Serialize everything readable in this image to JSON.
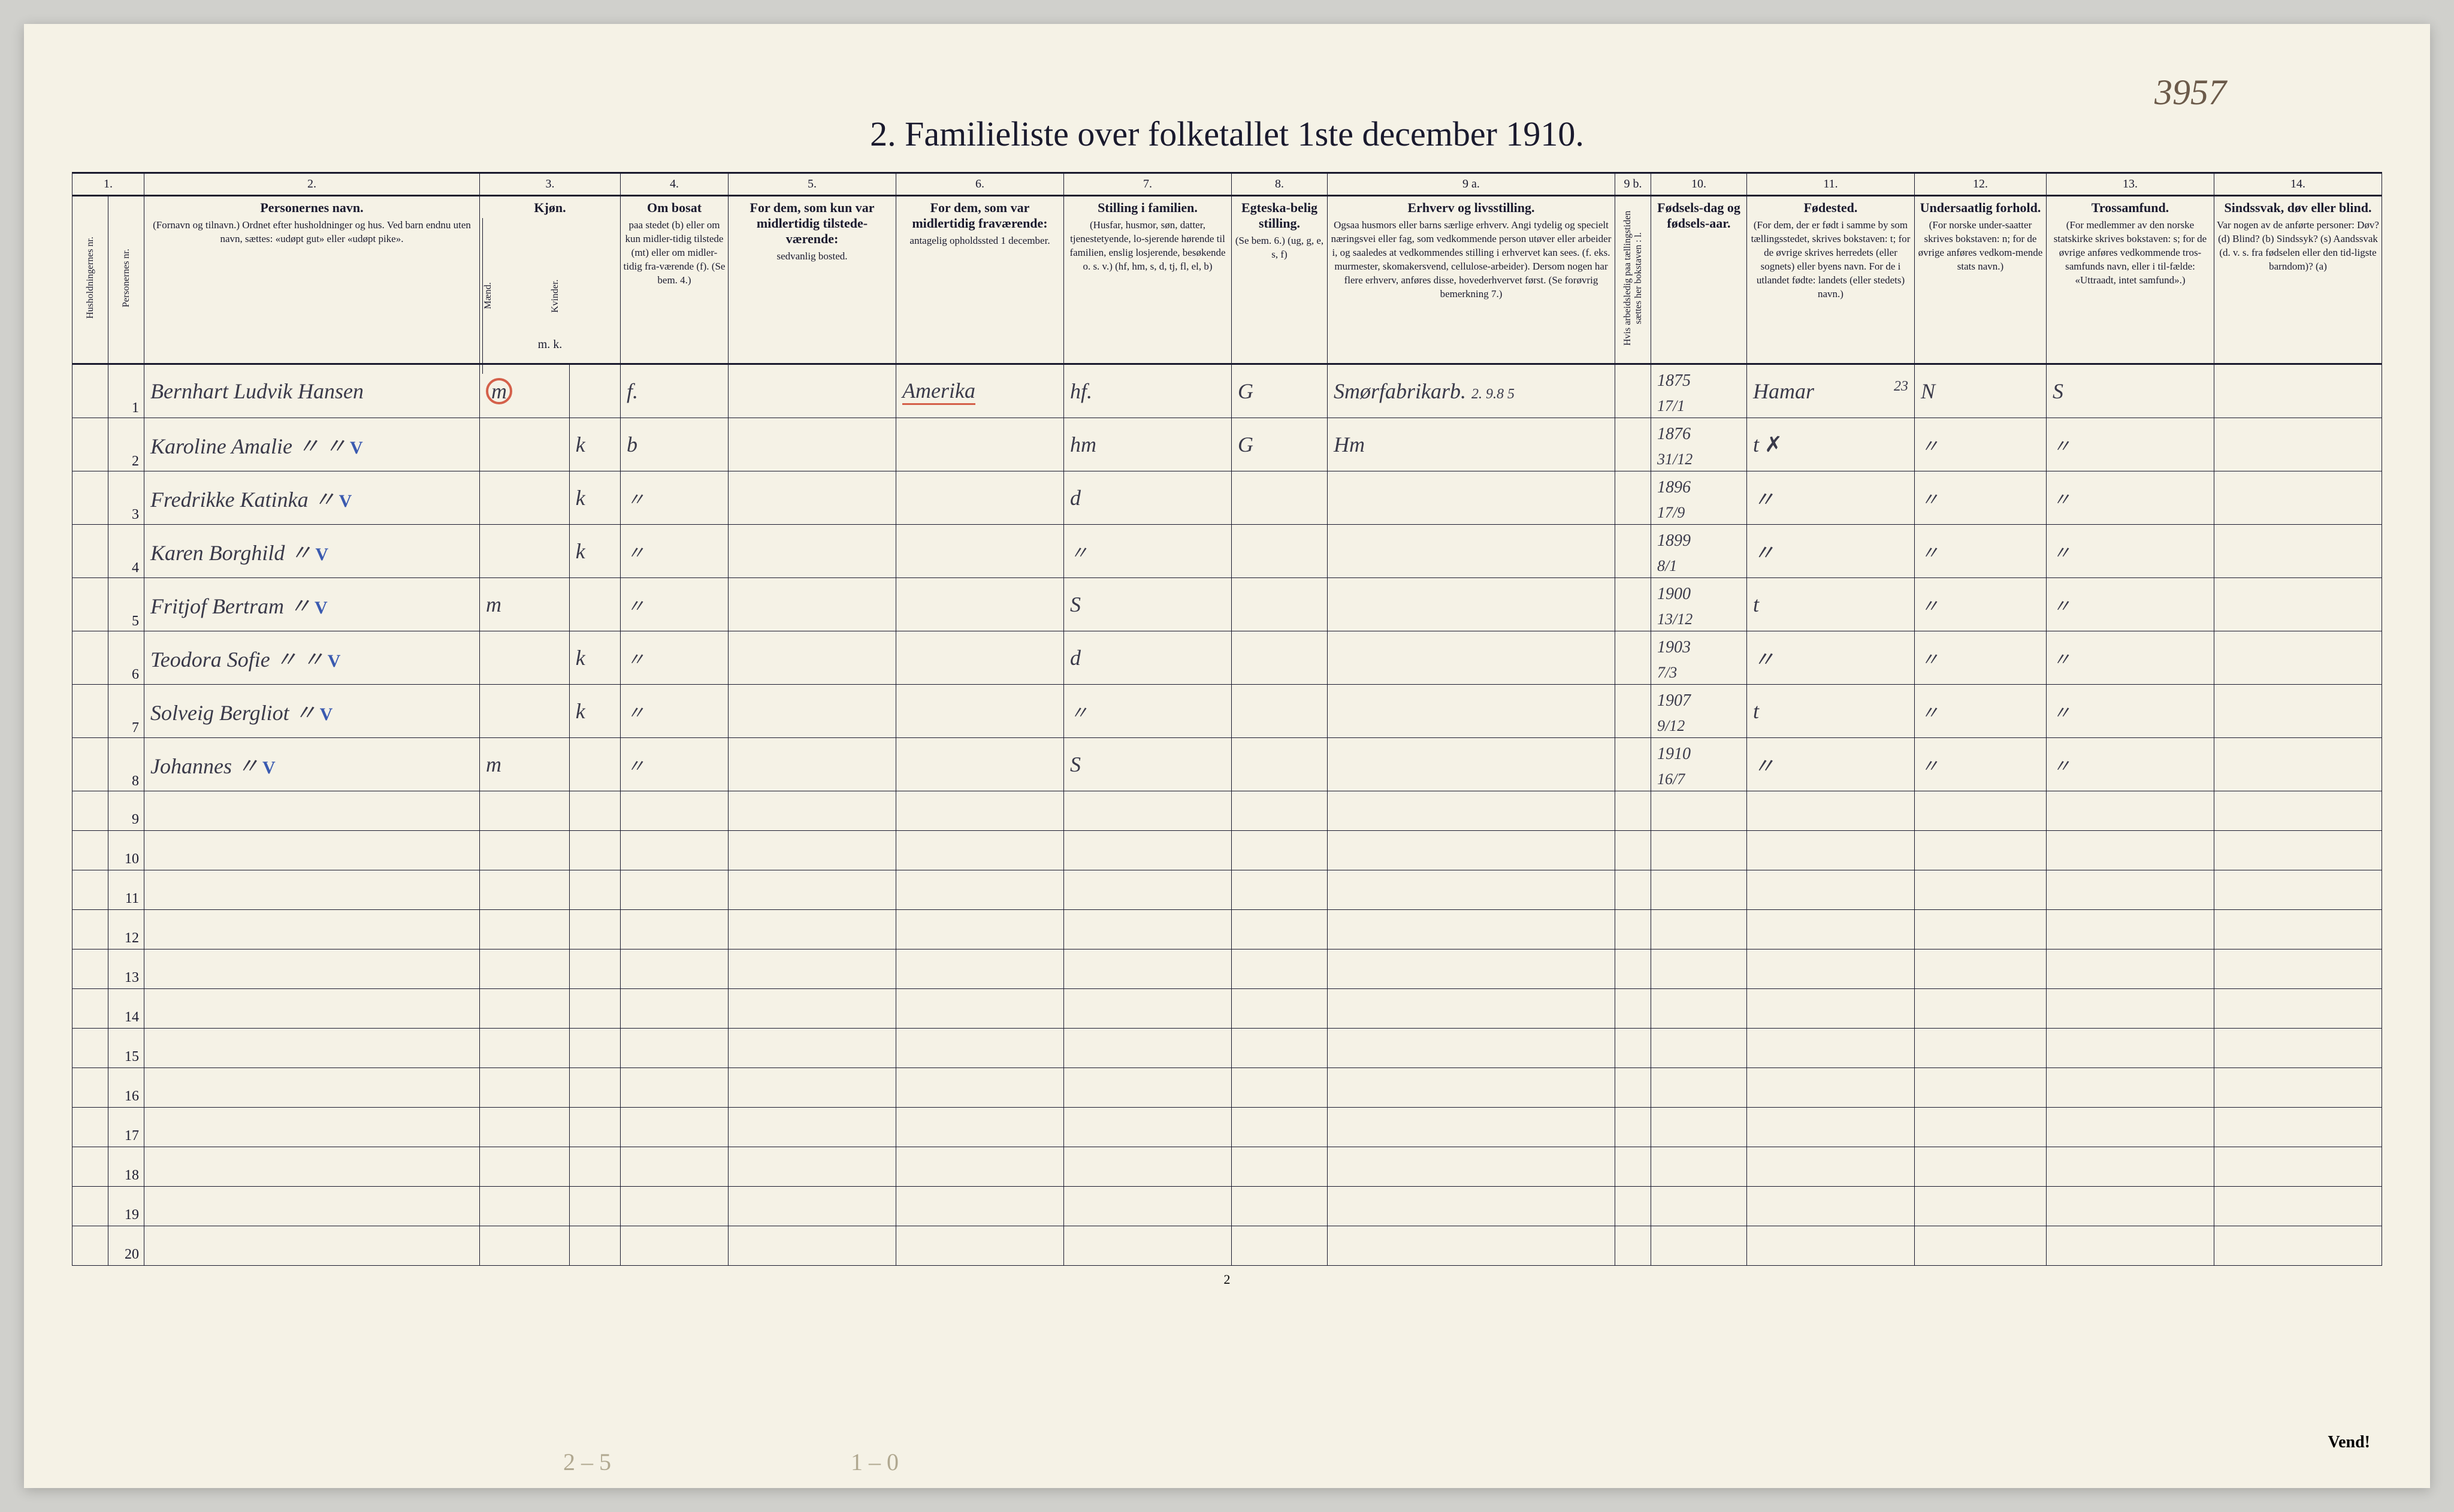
{
  "handwritten_topright": "3957",
  "title": "2.  Familieliste over folketallet 1ste december 1910.",
  "page_number": "2",
  "vend_text": "Vend!",
  "pencil_notes": {
    "left": "2 – 5",
    "right": "1 – 0"
  },
  "column_numbers": [
    "1.",
    "",
    "2.",
    "3.",
    "4.",
    "5.",
    "6.",
    "7.",
    "8.",
    "9 a.",
    "9 b.",
    "10.",
    "11.",
    "12.",
    "13.",
    "14."
  ],
  "headers": {
    "col1a": "Husholdningernes nr.",
    "col1b": "Personernes nr.",
    "col2": {
      "title": "Personernes navn.",
      "sub": "(Fornavn og tilnavn.)\nOrdnet efter husholdninger og hus.\nVed barn endnu uten navn, sættes: «udøpt gut»\neller «udøpt pike»."
    },
    "col3": {
      "title": "Kjøn.",
      "m": "Mænd.",
      "k": "Kvinder.",
      "bottom": "m.  k."
    },
    "col4": {
      "title": "Om bosat",
      "sub": "paa stedet (b) eller om kun midler-tidig tilstede (mt) eller om midler-tidig fra-værende (f). (Se bem. 4.)"
    },
    "col5": {
      "title": "For dem, som kun var midlertidig tilstede-værende:",
      "sub": "sedvanlig bosted."
    },
    "col6": {
      "title": "For dem, som var midlertidig fraværende:",
      "sub": "antagelig opholdssted 1 december."
    },
    "col7": {
      "title": "Stilling i familien.",
      "sub": "(Husfar, husmor, søn, datter, tjenestetyende, lo-sjerende hørende til familien, enslig losjerende, besøkende o. s. v.)\n(hf, hm, s, d, tj, fl, el, b)"
    },
    "col8": {
      "title": "Egteska-belig stilling.",
      "sub": "(Se bem. 6.)\n(ug, g, e, s, f)"
    },
    "col9a": {
      "title": "Erhverv og livsstilling.",
      "sub": "Ogsaa husmors eller barns særlige erhverv. Angi tydelig og specielt næringsvei eller fag, som vedkommende person utøver eller arbeider i, og saaledes at vedkommendes stilling i erhvervet kan sees. (f. eks. murmester, skomakersvend, cellulose-arbeider). Dersom nogen har flere erhverv, anføres disse, hovederhvervet først.\n(Se forøvrig bemerkning 7.)"
    },
    "col9b": "Hvis arbeidsledig paa tællingstiden sættes her bokstaven : l.",
    "col10": {
      "title": "Fødsels-dag og fødsels-aar."
    },
    "col11": {
      "title": "Fødested.",
      "sub": "(For dem, der er født i samme by som tællingsstedet, skrives bokstaven: t; for de øvrige skrives herredets (eller sognets) eller byens navn. For de i utlandet fødte: landets (eller stedets) navn.)"
    },
    "col12": {
      "title": "Undersaatlig forhold.",
      "sub": "(For norske under-saatter skrives bokstaven: n; for de øvrige anføres vedkom-mende stats navn.)"
    },
    "col13": {
      "title": "Trossamfund.",
      "sub": "(For medlemmer av den norske statskirke skrives bokstaven: s; for de øvrige anføres vedkommende tros-samfunds navn, eller i til-fælde: «Uttraadt, intet samfund».)"
    },
    "col14": {
      "title": "Sindssvak, døv eller blind.",
      "sub": "Var nogen av de anførte personer:\nDøv?        (d)\nBlind?      (b)\nSindssyk?  (s)\nAandssvak (d. v. s. fra fødselen eller den tid-ligste barndom)? (a)"
    }
  },
  "rows": [
    {
      "n": "1",
      "name": "Bernhart Ludvik Hansen",
      "sex": "m",
      "sex_circled": true,
      "bosat": "f.",
      "col6": "Amerika",
      "col6_underlined": true,
      "col7": "hf.",
      "col8": "G",
      "col9a": "Smørfabrikarb.",
      "col9a_note": "2. 9.8 5",
      "col10": "1875\n17/1",
      "col11": "Hamar",
      "col11_note": "23",
      "col12": "N",
      "col13": "S"
    },
    {
      "n": "2",
      "name": "Karoline Amalie  〃  〃",
      "bluemark": true,
      "sex": "k",
      "bosat": "b",
      "col7": "hm",
      "col8": "G",
      "col9a": "Hm",
      "col10": "1876\n31/12",
      "col11": "t",
      "col11_struck": "✗",
      "col12": "〃",
      "col13": "〃"
    },
    {
      "n": "3",
      "name": "Fredrikke Katinka  〃",
      "bluemark": true,
      "sex": "k",
      "bosat": "〃",
      "col7": "d",
      "col10": "1896\n17/9",
      "col11": "〃",
      "col12": "〃",
      "col13": "〃"
    },
    {
      "n": "4",
      "name": "Karen Borghild  〃",
      "bluemark": true,
      "sex": "k",
      "bosat": "〃",
      "col7": "〃",
      "col10": "1899\n8/1",
      "col11": "〃",
      "col12": "〃",
      "col13": "〃"
    },
    {
      "n": "5",
      "name": "Fritjof Bertram  〃",
      "bluemark": true,
      "sex": "m",
      "bosat": "〃",
      "col7": "S",
      "col10": "1900\n13/12",
      "col11": "t",
      "col12": "〃",
      "col13": "〃"
    },
    {
      "n": "6",
      "name": "Teodora Sofie  〃  〃",
      "bluemark": true,
      "sex": "k",
      "bosat": "〃",
      "col7": "d",
      "col10": "1903\n7/3",
      "col11": "〃",
      "col12": "〃",
      "col13": "〃"
    },
    {
      "n": "7",
      "name": "Solveig Bergliot  〃",
      "bluemark": true,
      "sex": "k",
      "bosat": "〃",
      "col7": "〃",
      "col10": "1907\n9/12",
      "col11": "t",
      "col12": "〃",
      "col13": "〃"
    },
    {
      "n": "8",
      "name": "Johannes  〃",
      "bluemark": true,
      "sex": "m",
      "bosat": "〃",
      "col7": "S",
      "col10": "1910\n16/7",
      "col11": "〃",
      "col12": "〃",
      "col13": "〃"
    }
  ],
  "empty_rows": [
    "9",
    "10",
    "11",
    "12",
    "13",
    "14",
    "15",
    "16",
    "17",
    "18",
    "19",
    "20"
  ],
  "colors": {
    "paper": "#f5f2e6",
    "ink": "#1a1a2e",
    "handwriting": "#3a3a4a",
    "red": "#d4604a",
    "blue": "#3a5ab0",
    "pencil": "#b0a890"
  }
}
